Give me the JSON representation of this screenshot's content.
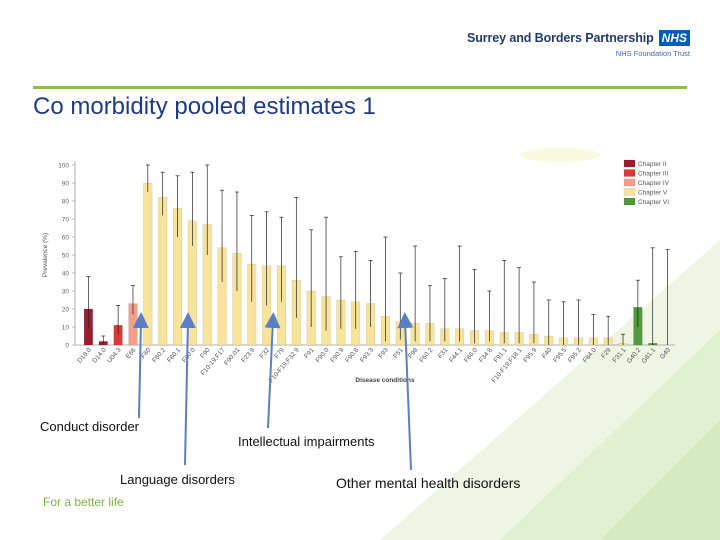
{
  "header": {
    "org_name": "Surrey and Borders Partnership",
    "nhs_label": "NHS",
    "org_sub": "NHS Foundation Trust"
  },
  "slide": {
    "title": "Co morbidity pooled estimates 1",
    "footer": "For a better life"
  },
  "annotations": {
    "conduct": "Conduct disorder",
    "intellectual": "Intellectual impairments",
    "language": "Language disorders",
    "other": "Other mental health disorders"
  },
  "colors": {
    "accent_green": "#8cbf3f",
    "title_blue": "#1e3a8a",
    "arrow_blue": "#5b7fc4",
    "Chapter II": "#9e1b32",
    "Chapter III": "#d83a3a",
    "Chapter IV": "#f2a08a",
    "Chapter V": "#f7e39a",
    "Chapter VI": "#4f9a3a"
  },
  "chart_data": {
    "type": "bar",
    "title": "",
    "xlabel": "Disease conditions",
    "ylabel": "Prevalence (%)",
    "ylim": [
      0,
      100
    ],
    "yticks": [
      0,
      10,
      20,
      30,
      40,
      50,
      60,
      70,
      80,
      90,
      100
    ],
    "legend": [
      "Chapter II",
      "Chapter III",
      "Chapter IV",
      "Chapter V",
      "Chapter VI"
    ],
    "categories": [
      "D18.0",
      "D14.0",
      "U04.3",
      "E66",
      "F80",
      "F80.2",
      "F80.1",
      "F80.0",
      "F90",
      "F10-19;F17",
      "F90.01",
      "F23.9",
      "F32",
      "F79",
      "F10-F19;F32.9",
      "F91",
      "F90.0",
      "F90.9",
      "F90.8",
      "F93.3",
      "F93",
      "F51",
      "F98",
      "F60.2",
      "F31",
      "F44.1",
      "F86.0",
      "F34.8",
      "F91.1",
      "F10-F19;F18.1",
      "F95.9",
      "F40",
      "F95.5",
      "F95.2",
      "F84.0",
      "F29",
      "F31.1",
      "G40.2",
      "G81.1",
      "G40"
    ],
    "chapters": [
      "Chapter II",
      "Chapter II",
      "Chapter III",
      "Chapter IV",
      "Chapter V",
      "Chapter V",
      "Chapter V",
      "Chapter V",
      "Chapter V",
      "Chapter V",
      "Chapter V",
      "Chapter V",
      "Chapter V",
      "Chapter V",
      "Chapter V",
      "Chapter V",
      "Chapter V",
      "Chapter V",
      "Chapter V",
      "Chapter V",
      "Chapter V",
      "Chapter V",
      "Chapter V",
      "Chapter V",
      "Chapter V",
      "Chapter V",
      "Chapter V",
      "Chapter V",
      "Chapter V",
      "Chapter V",
      "Chapter V",
      "Chapter V",
      "Chapter V",
      "Chapter V",
      "Chapter V",
      "Chapter V",
      "Chapter V",
      "Chapter VI",
      "Chapter VI",
      "Chapter VI"
    ],
    "values": [
      20,
      2,
      11,
      23,
      90,
      82,
      76,
      69,
      67,
      54,
      51,
      45,
      44,
      44,
      36,
      30,
      27,
      25,
      24,
      23,
      16,
      13,
      12,
      12,
      9,
      9,
      8,
      8,
      7,
      7,
      6,
      5,
      4,
      4,
      4,
      4,
      1,
      21,
      1,
      0
    ],
    "upper": [
      38,
      5,
      22,
      33,
      100,
      96,
      94,
      96,
      100,
      86,
      85,
      72,
      74,
      71,
      82,
      64,
      71,
      49,
      52,
      47,
      60,
      40,
      55,
      33,
      37,
      55,
      42,
      30,
      47,
      43,
      35,
      25,
      24,
      25,
      17,
      16,
      6,
      36,
      54,
      53
    ],
    "lower": [
      9,
      0,
      6,
      17,
      85,
      72,
      60,
      55,
      50,
      35,
      30,
      24,
      22,
      24,
      15,
      10,
      8,
      9,
      9,
      10,
      2,
      3,
      2,
      2,
      2,
      2,
      1,
      2,
      1,
      1,
      1,
      0,
      0,
      0,
      0,
      0,
      0,
      10,
      0,
      0
    ]
  }
}
